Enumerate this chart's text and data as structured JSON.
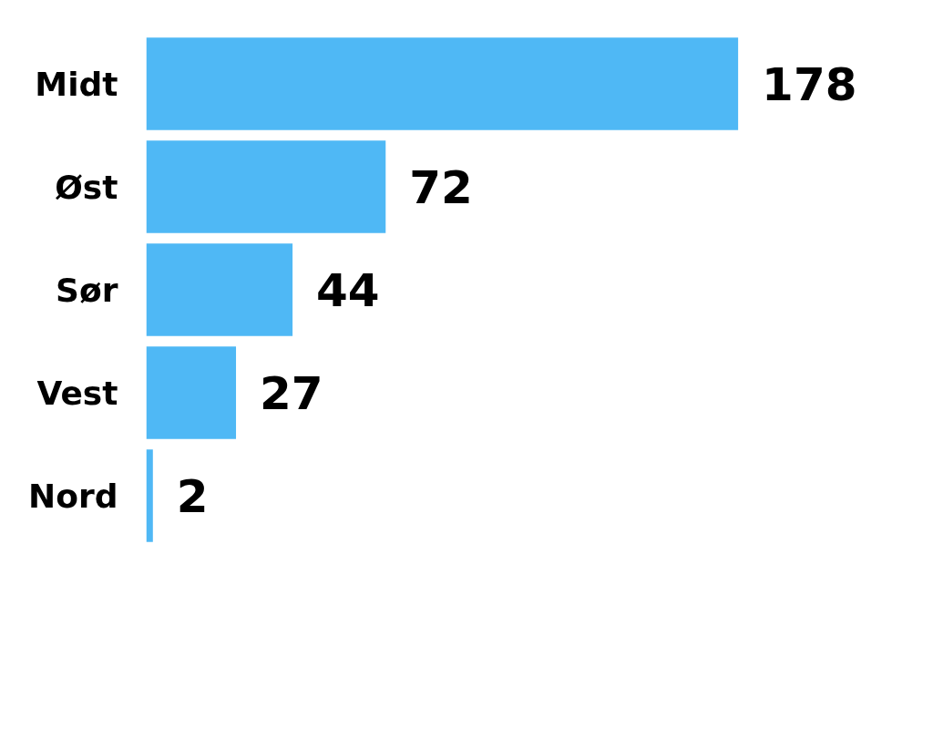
{
  "chart_data": {
    "type": "bar",
    "orientation": "horizontal",
    "categories": [
      "Midt",
      "Øst",
      "Sør",
      "Vest",
      "Nord"
    ],
    "values": [
      178,
      72,
      44,
      27,
      2
    ],
    "color": "#4fb8f5",
    "data_labels": true
  }
}
